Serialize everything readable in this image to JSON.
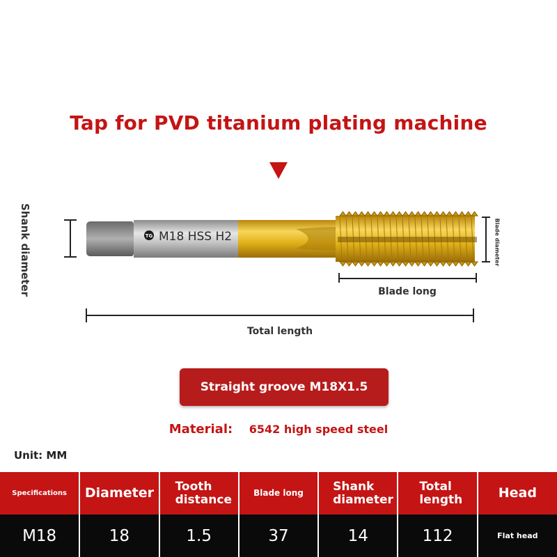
{
  "title": "Tap for PVD titanium plating machine",
  "tool": {
    "engraving": "M18 HSS H2",
    "logo": "TG"
  },
  "labels": {
    "shank_diameter": "Shank diameter",
    "blade_diameter": "Blade diameter",
    "blade_long": "Blade long",
    "total_length": "Total length"
  },
  "groove_button": "Straight groove M18X1.5",
  "material": {
    "label": "Material:",
    "value": "6542 high speed steel"
  },
  "unit": "Unit: MM",
  "spec_table": {
    "headers": [
      "Specifications",
      "Diameter",
      "Tooth distance",
      "Blade long",
      "Shank diameter",
      "Total length",
      "Head"
    ],
    "row": [
      "M18",
      "18",
      "1.5",
      "37",
      "14",
      "112",
      "Flat head"
    ]
  },
  "colors": {
    "brand_red": "#c41414",
    "gold": "#e2b21a",
    "steel": "#b8b8b8"
  }
}
